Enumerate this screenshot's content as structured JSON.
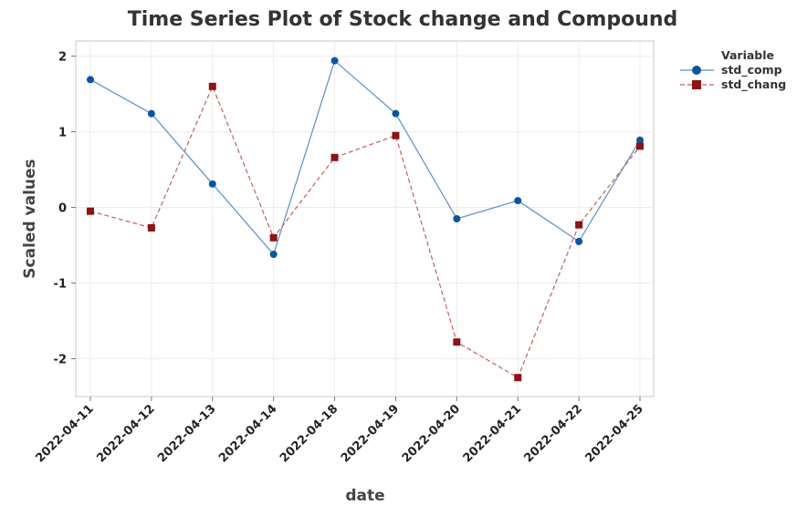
{
  "chart_data": {
    "type": "line",
    "title": "Time Series Plot of Stock change and Compound",
    "xlabel": "date",
    "ylabel": "Scaled values",
    "categories": [
      "2022-04-11",
      "2022-04-12",
      "2022-04-13",
      "2022-04-14",
      "2022-04-18",
      "2022-04-19",
      "2022-04-20",
      "2022-04-21",
      "2022-04-22",
      "2022-04-25"
    ],
    "ylim": [
      -2.5,
      2.2
    ],
    "yticks": [
      -2,
      -1,
      0,
      1,
      2
    ],
    "ytick_labels": [
      "-2",
      "-1",
      "0",
      "1",
      "2"
    ],
    "grid": true,
    "legend": {
      "title": "Variable",
      "placement": "top-right, outside plot"
    },
    "series": [
      {
        "name": "std_comp",
        "color": "#0b54a0",
        "line_color": "#5a8fc9",
        "marker": "circle",
        "line_style": "solid",
        "values": [
          1.69,
          1.24,
          0.31,
          -0.62,
          1.94,
          1.24,
          -0.15,
          0.09,
          -0.45,
          0.89
        ]
      },
      {
        "name": "std_chang",
        "color": "#8b1414",
        "line_color": "#c06060",
        "marker": "square",
        "line_style": "dashed",
        "values": [
          -0.05,
          -0.27,
          1.6,
          -0.4,
          0.66,
          0.95,
          -1.78,
          -2.25,
          -0.23,
          0.81
        ]
      }
    ]
  }
}
